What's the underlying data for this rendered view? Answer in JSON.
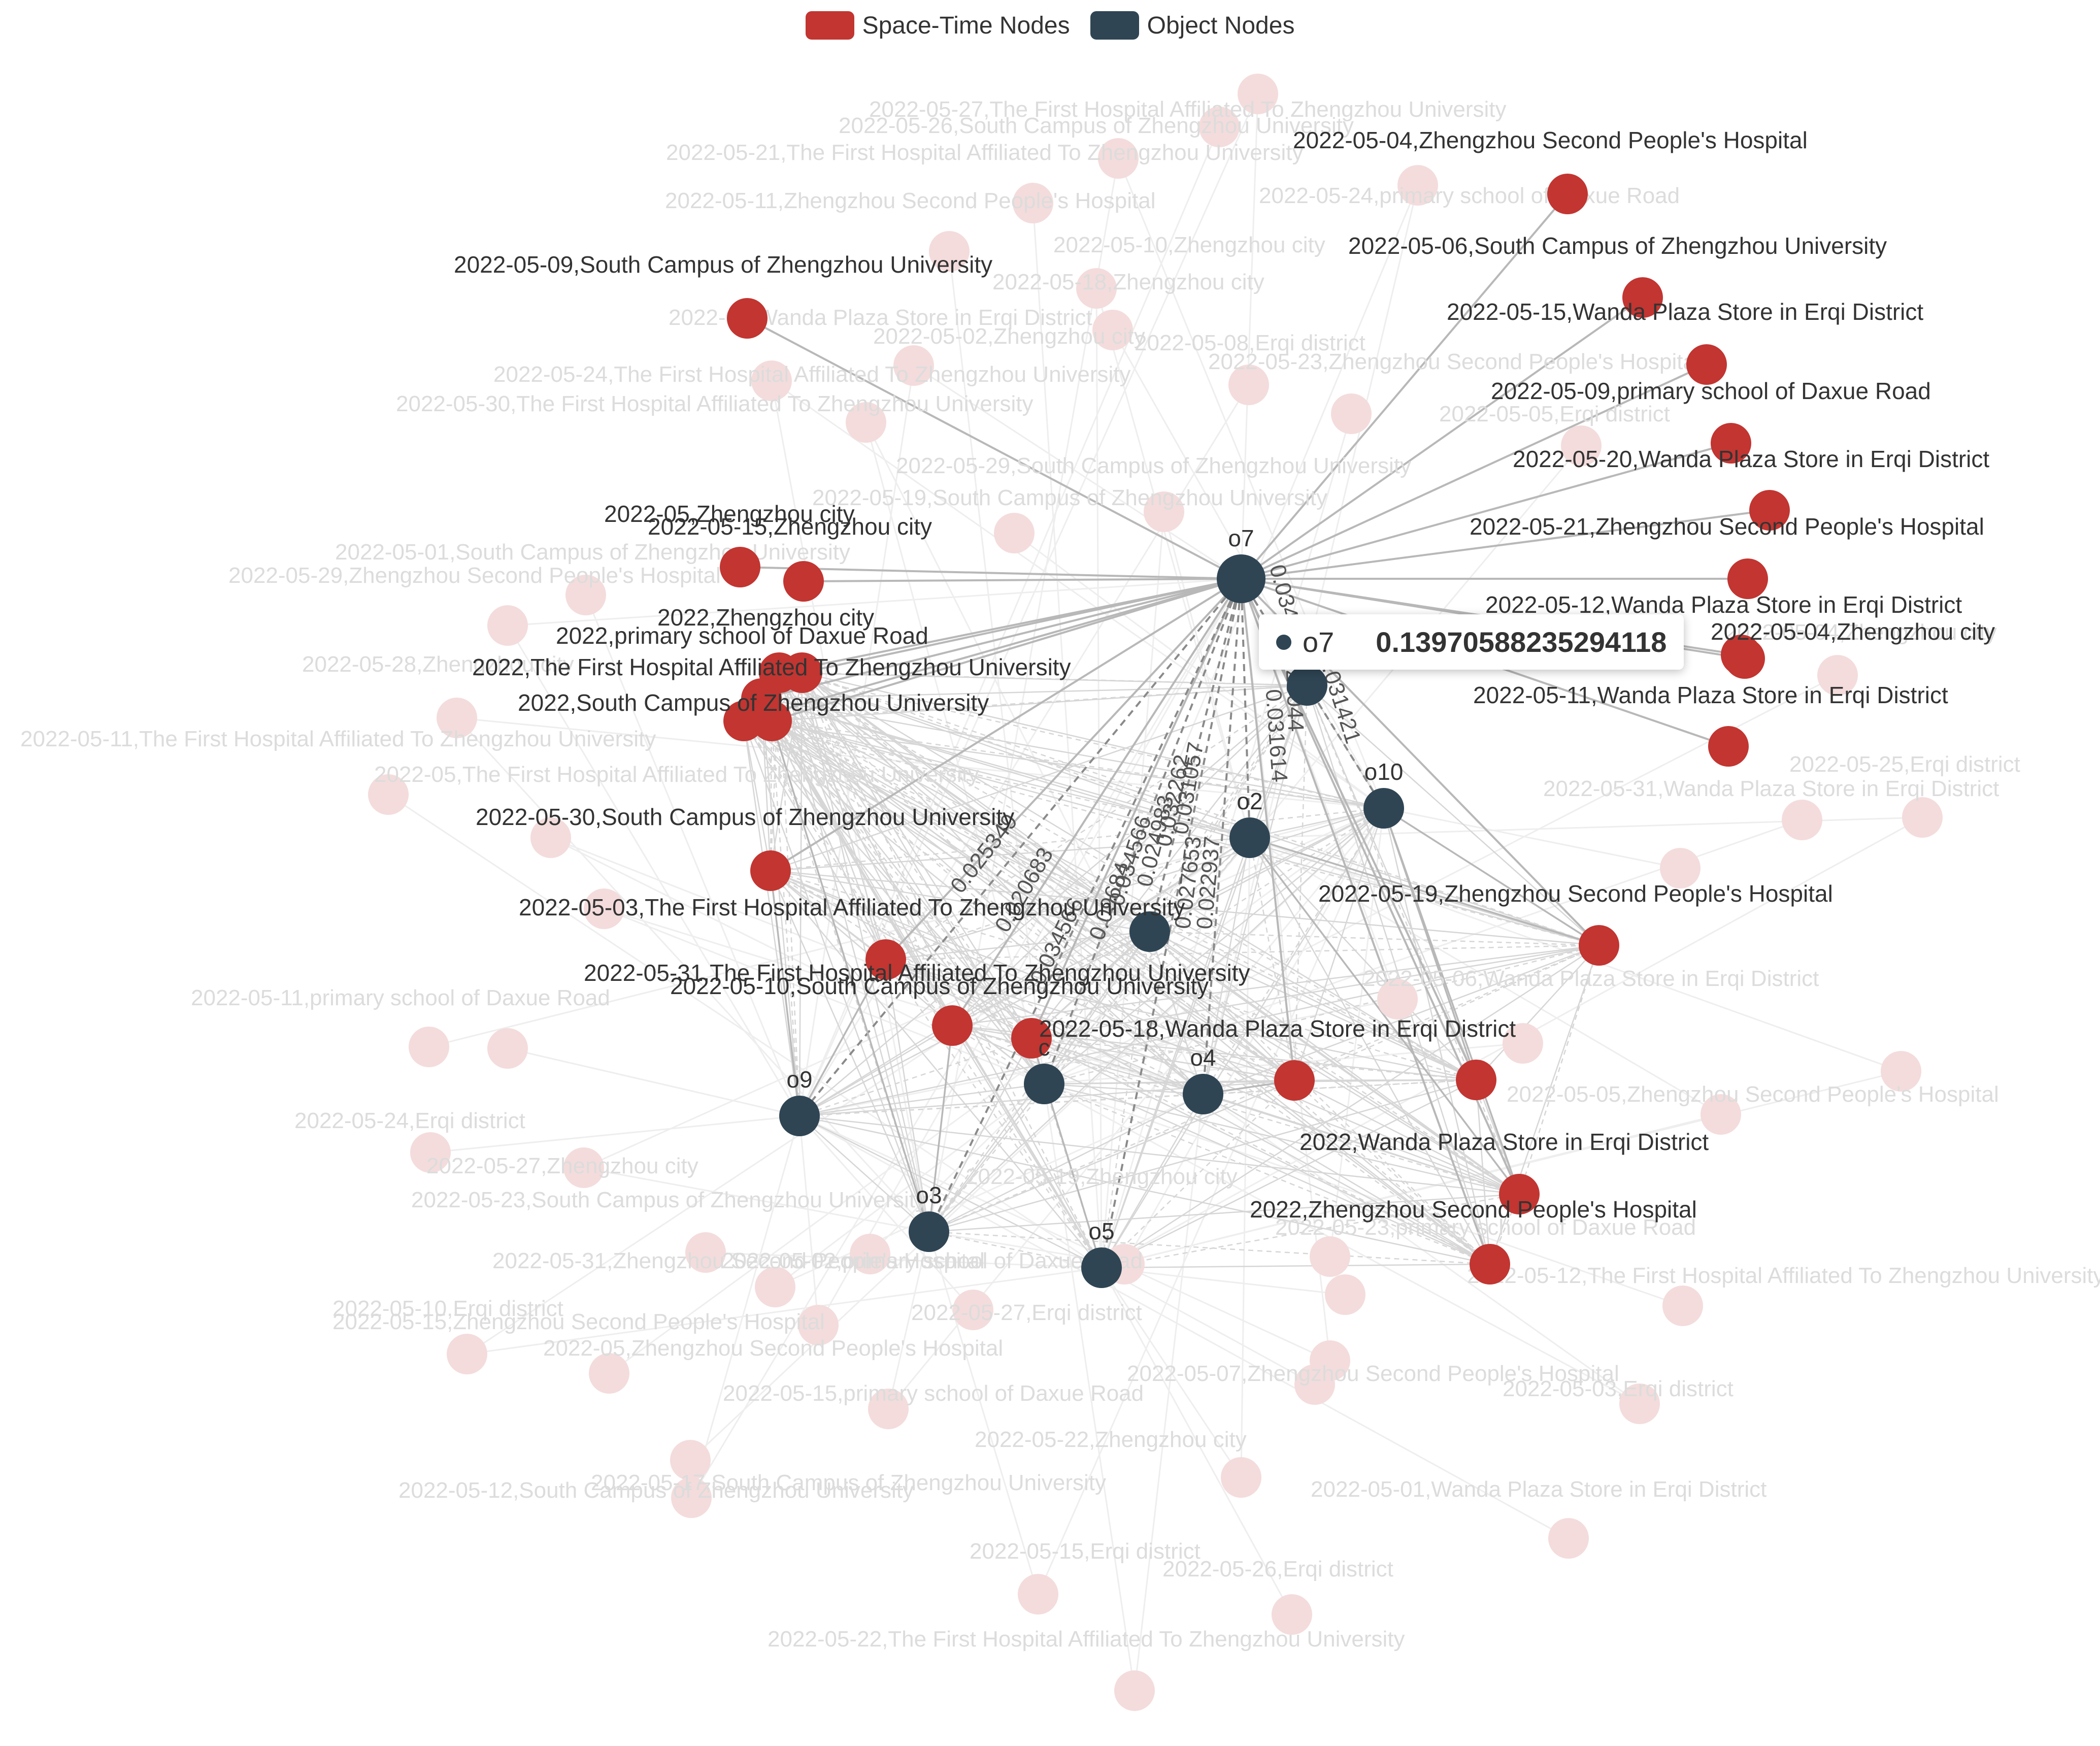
{
  "legend": [
    {
      "label": "Space-Time Nodes",
      "color": "#c23531",
      "icon": "rounded-rect-icon"
    },
    {
      "label": "Object Nodes",
      "color": "#2f4554",
      "icon": "rounded-rect-icon"
    }
  ],
  "colors": {
    "space_time": "#c23531",
    "object": "#2f4554",
    "faded_node": "#f4dcdc",
    "faded_text": "#dcdcdc",
    "edge": "#b8b8b8",
    "faded_edge": "#eeeeee"
  },
  "tooltip": {
    "node": "o7",
    "value": "0.13970588235294118"
  },
  "object_nodes": [
    {
      "id": "o7",
      "label": "o7",
      "focus": true
    },
    {
      "id": "o2",
      "label": "o2"
    },
    {
      "id": "o10",
      "label": "o10"
    },
    {
      "id": "o9",
      "label": "o9"
    },
    {
      "id": "o3",
      "label": "o3"
    },
    {
      "id": "o4",
      "label": "o4"
    },
    {
      "id": "o5",
      "label": "o5"
    },
    {
      "id": "oc",
      "label": "c"
    },
    {
      "id": "o8",
      "label": ""
    },
    {
      "id": "o6",
      "label": ""
    }
  ],
  "space_time_nodes": [
    {
      "id": "s1",
      "label": "2022-05-04,Zhengzhou Second People's Hospital"
    },
    {
      "id": "s2",
      "label": "2022-05-06,South Campus of Zhengzhou University"
    },
    {
      "id": "s3",
      "label": "2022-05-15,Wanda Plaza Store in Erqi District"
    },
    {
      "id": "s4",
      "label": "2022-05-09,primary school of Daxue Road"
    },
    {
      "id": "s5",
      "label": "2022-05-20,Wanda Plaza Store in Erqi District"
    },
    {
      "id": "s6",
      "label": "2022-05-21,Zhengzhou Second People's Hospital"
    },
    {
      "id": "s7",
      "label": "2022-05-12,Wanda Plaza Store in Erqi District"
    },
    {
      "id": "s8",
      "label": "2022-05-04,Zhengzhou city"
    },
    {
      "id": "s9",
      "label": "2022-05-11,Wanda Plaza Store in Erqi District"
    },
    {
      "id": "s10",
      "label": "2022-05-09,South Campus of Zhengzhou University"
    },
    {
      "id": "s11",
      "label": "2022-05,Zhengzhou city"
    },
    {
      "id": "s12",
      "label": "2022-05-15,Zhengzhou city"
    },
    {
      "id": "s13",
      "label": "2022,Zhengzhou city"
    },
    {
      "id": "s14",
      "label": "2022,primary school of Daxue Road"
    },
    {
      "id": "s15",
      "label": "2022,The First Hospital Affiliated To Zhengzhou University"
    },
    {
      "id": "s16",
      "label": "2022,South Campus of Zhengzhou University"
    },
    {
      "id": "s17",
      "label": "2022-05-30,South Campus of Zhengzhou University"
    },
    {
      "id": "s18",
      "label": "2022-05-03,The First Hospital Affiliated To Zhengzhou University"
    },
    {
      "id": "s19",
      "label": "2022-05-31,The First Hospital Affiliated To Zhengzhou University"
    },
    {
      "id": "s20",
      "label": "2022-05-10,South Campus of Zhengzhou University"
    },
    {
      "id": "s21",
      "label": "2022-05-18,Wanda Plaza Store in Erqi District"
    },
    {
      "id": "s22",
      "label": "2022-05-19,Zhengzhou Second People's Hospital"
    },
    {
      "id": "s23",
      "label": "2022,Wanda Plaza Store in Erqi District"
    },
    {
      "id": "s24",
      "label": "2022,Zhengzhou Second People's Hospital"
    },
    {
      "id": "s25",
      "label": ""
    },
    {
      "id": "s26",
      "label": ""
    }
  ],
  "faded_nodes": [
    {
      "id": "f1",
      "label": "2022-05-27,The First Hospital Affiliated To Zhengzhou University"
    },
    {
      "id": "f2",
      "label": "2022-05-26,South Campus of Zhengzhou University"
    },
    {
      "id": "f3",
      "label": "2022-05-21,The First Hospital Affiliated To Zhengzhou University"
    },
    {
      "id": "f4",
      "label": "2022-05-11,Zhengzhou Second People's Hospital"
    },
    {
      "id": "f5",
      "label": "2022-05-24,primary school of Daxue Road"
    },
    {
      "id": "f6",
      "label": "2022-05-10,Zhengzhou city"
    },
    {
      "id": "f7",
      "label": "2022-05-18,Zhengzhou city"
    },
    {
      "id": "f8",
      "label": "2022-05,Wanda Plaza Store in Erqi District"
    },
    {
      "id": "f9",
      "label": "2022-05-02,Zhengzhou city"
    },
    {
      "id": "f10",
      "label": "2022-05-08,Erqi district"
    },
    {
      "id": "f11",
      "label": "2022-05-24,The First Hospital Affiliated To Zhengzhou University"
    },
    {
      "id": "f12",
      "label": "2022-05-23,Zhengzhou Second People's Hospital"
    },
    {
      "id": "f13",
      "label": "2022-05-30,The First Hospital Affiliated To Zhengzhou University"
    },
    {
      "id": "f14",
      "label": "2022-05-05,Erqi district"
    },
    {
      "id": "f15",
      "label": "2022-05-29,South Campus of Zhengzhou University"
    },
    {
      "id": "f16",
      "label": "2022-05-19,South Campus of Zhengzhou University"
    },
    {
      "id": "f17",
      "label": "2022-05-01,South Campus of Zhengzhou University"
    },
    {
      "id": "f18",
      "label": "2022-05-29,Zhengzhou Second People's Hospital"
    },
    {
      "id": "f19",
      "label": "2022-05-28,Zhengzhou city"
    },
    {
      "id": "f20",
      "label": "2022-05-11,The First Hospital Affiliated To Zhengzhou University"
    },
    {
      "id": "f21",
      "label": "2022-05,The First Hospital Affiliated To Zhengzhou University"
    },
    {
      "id": "f22",
      "label": "2022-05-25,Erqi district"
    },
    {
      "id": "f23",
      "label": "2022-05-31,Wanda Plaza Store in Erqi District"
    },
    {
      "id": "f24",
      "label": "2022-05-11,primary school of Daxue Road"
    },
    {
      "id": "f25",
      "label": "2022-05-06,Wanda Plaza Store in Erqi District"
    },
    {
      "id": "f26",
      "label": "2022-05-24,Erqi district"
    },
    {
      "id": "f27",
      "label": "2022-05-27,Zhengzhou city"
    },
    {
      "id": "f28",
      "label": "2022-05-23,South Campus of Zhengzhou University"
    },
    {
      "id": "f29",
      "label": "2022-05-31,Zhengzhou Second People's Hospital"
    },
    {
      "id": "f30",
      "label": "2022-05-02,primary school of Daxue Road"
    },
    {
      "id": "f31",
      "label": "2022-05-10,Erqi district"
    },
    {
      "id": "f32",
      "label": "2022-05-15,Zhengzhou Second People's Hospital"
    },
    {
      "id": "f33",
      "label": "2022-05,Zhengzhou Second People's Hospital"
    },
    {
      "id": "f34",
      "label": "2022-05-27,Erqi district"
    },
    {
      "id": "f35",
      "label": "2022-05-15,primary school of Daxue Road"
    },
    {
      "id": "f36",
      "label": "2022-05-07,Zhengzhou Second People's Hospital"
    },
    {
      "id": "f37",
      "label": "2022-05-03,Erqi district"
    },
    {
      "id": "f38",
      "label": "2022-05-12,The First Hospital Affiliated To Zhengzhou University"
    },
    {
      "id": "f39",
      "label": "2022-05-22,Zhengzhou city"
    },
    {
      "id": "f40",
      "label": "2022-05-17,South Campus of Zhengzhou University"
    },
    {
      "id": "f41",
      "label": "2022-05-12,South Campus of Zhengzhou University"
    },
    {
      "id": "f42",
      "label": "2022-05-01,Wanda Plaza Store in Erqi District"
    },
    {
      "id": "f43",
      "label": "2022-05-15,Erqi district"
    },
    {
      "id": "f44",
      "label": "2022-05-26,Erqi district"
    },
    {
      "id": "f45",
      "label": "2022-05-22,The First Hospital Affiliated To Zhengzhou University"
    },
    {
      "id": "f46",
      "label": "2022-05-04,Zhengzhou city"
    },
    {
      "id": "f47",
      "label": "2022-05-05,Zhengzhou Second People's Hospital"
    },
    {
      "id": "f48",
      "label": "2022-05-23,primary school of Daxue Road"
    },
    {
      "id": "f49",
      "label": "2022-05-19,Zhengzhou city"
    },
    {
      "id": "f50",
      "label": ""
    },
    {
      "id": "f51",
      "label": ""
    },
    {
      "id": "f52",
      "label": ""
    },
    {
      "id": "f53",
      "label": ""
    },
    {
      "id": "f54",
      "label": ""
    },
    {
      "id": "f55",
      "label": ""
    },
    {
      "id": "f56",
      "label": ""
    }
  ],
  "edge_labels": [
    {
      "id": "e1",
      "from": "o7",
      "to": "o9",
      "label": "0.025349"
    },
    {
      "id": "e2",
      "from": "o7",
      "to": "o3",
      "label": "0.020683"
    },
    {
      "id": "e3",
      "from": "o7",
      "to": "oc",
      "label": "0.034566"
    },
    {
      "id": "e4",
      "from": "o7",
      "to": "o5",
      "label": "0.09684"
    },
    {
      "id": "e5",
      "from": "o7",
      "to": "o5",
      "label": "0.034566"
    },
    {
      "id": "e6",
      "from": "o7",
      "to": "o4",
      "label": "0.024983"
    },
    {
      "id": "e7",
      "from": "o7",
      "to": "o4",
      "label": "0.032262"
    },
    {
      "id": "e8",
      "from": "o7",
      "to": "o4",
      "label": "0.031057"
    },
    {
      "id": "e9",
      "from": "o7",
      "to": "o5",
      "label": "0.027653"
    },
    {
      "id": "e10",
      "from": "o7",
      "to": "o2",
      "label": "0.022937"
    },
    {
      "id": "e11",
      "from": "o7",
      "to": "o2",
      "label": "0.023044"
    },
    {
      "id": "e12",
      "from": "o7",
      "to": "o2",
      "label": "0.031614"
    },
    {
      "id": "e13",
      "from": "o7",
      "to": "o10",
      "label": "0.031421"
    },
    {
      "id": "e14",
      "from": "o7",
      "to": "o8",
      "label": "0.034"
    }
  ]
}
